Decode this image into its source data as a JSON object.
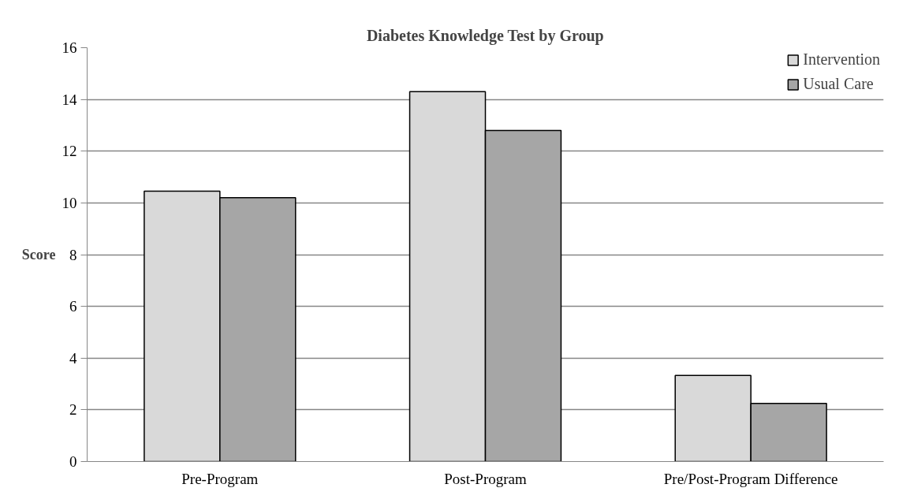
{
  "chart_data": {
    "type": "bar",
    "title": "Diabetes Knowledge Test by Group",
    "ylabel": "Score",
    "categories": [
      "Pre-Program",
      "Post-Program",
      "Pre/Post-Program Difference"
    ],
    "series": [
      {
        "name": "Intervention",
        "color": "#d9d9d9",
        "values": [
          10.45,
          14.3,
          3.33
        ]
      },
      {
        "name": "Usual Care",
        "color": "#a6a6a6",
        "values": [
          10.2,
          12.8,
          2.25
        ]
      }
    ],
    "ylim": [
      0,
      16
    ],
    "yticks": [
      0,
      2,
      4,
      6,
      8,
      10,
      12,
      14,
      16
    ],
    "grid": "y",
    "legend": "top right"
  }
}
